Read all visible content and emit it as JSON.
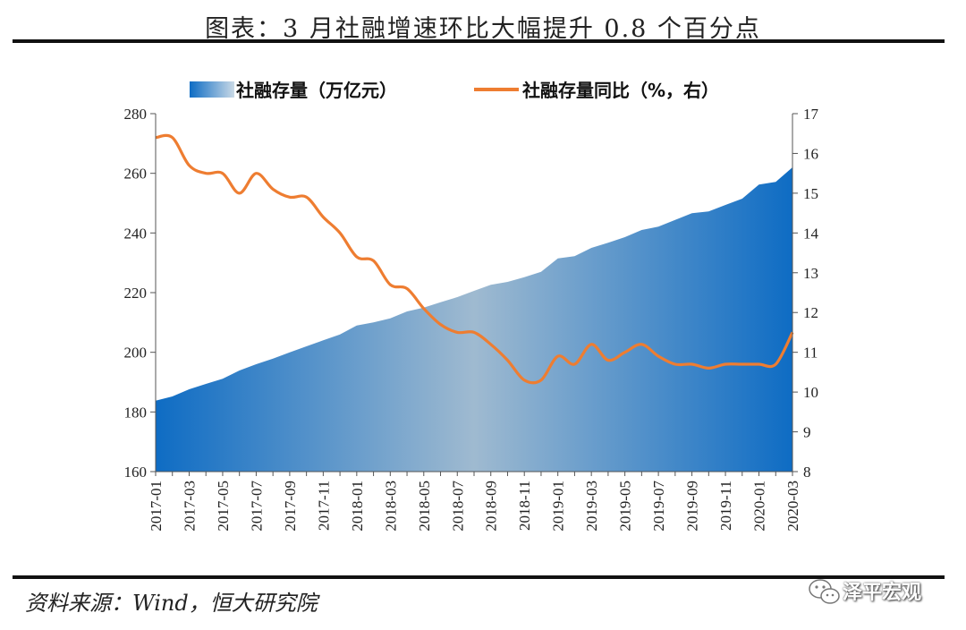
{
  "title": "图表：3 月社融增速环比大幅提升 0.8 个百分点",
  "source": "资料来源：Wind，恒大研究院",
  "brand": {
    "name": "泽平宏观",
    "icon": "wechat-icon"
  },
  "colors": {
    "area_dark": "#0e6cc4",
    "area_light": "#9fbad0",
    "line": "#ee7d31"
  },
  "chart_data": {
    "type": "area",
    "x": [
      "2017-01",
      "2017-02",
      "2017-03",
      "2017-04",
      "2017-05",
      "2017-06",
      "2017-07",
      "2017-08",
      "2017-09",
      "2017-10",
      "2017-11",
      "2017-12",
      "2018-01",
      "2018-02",
      "2018-03",
      "2018-04",
      "2018-05",
      "2018-06",
      "2018-07",
      "2018-08",
      "2018-09",
      "2018-10",
      "2018-11",
      "2018-12",
      "2019-01",
      "2019-02",
      "2019-03",
      "2019-04",
      "2019-05",
      "2019-06",
      "2019-07",
      "2019-08",
      "2019-09",
      "2019-10",
      "2019-11",
      "2019-12",
      "2020-01",
      "2020-02",
      "2020-03"
    ],
    "x_tick_labels": [
      "2017-01",
      "2017-03",
      "2017-05",
      "2017-07",
      "2017-09",
      "2017-11",
      "2018-01",
      "2018-03",
      "2018-05",
      "2018-07",
      "2018-09",
      "2018-11",
      "2019-01",
      "2019-03",
      "2019-05",
      "2019-07",
      "2019-09",
      "2019-11",
      "2020-01",
      "2020-03"
    ],
    "series": [
      {
        "name": "社融存量（万亿元）",
        "type": "area",
        "axis": "left",
        "values": [
          183.8,
          185.2,
          187.6,
          189.4,
          191.1,
          193.9,
          196.0,
          197.9,
          200.0,
          202.0,
          204.0,
          206.0,
          209.0,
          210.0,
          211.4,
          213.7,
          215.0,
          216.8,
          218.5,
          220.6,
          222.6,
          223.6,
          225.2,
          227.0,
          231.5,
          232.2,
          235.0,
          236.7,
          238.6,
          241.0,
          242.1,
          244.4,
          246.6,
          247.2,
          249.4,
          251.5,
          256.2,
          257.1,
          262.0
        ]
      },
      {
        "name": "社融存量同比（%，右）",
        "type": "line",
        "axis": "right",
        "values": [
          16.4,
          16.4,
          15.7,
          15.5,
          15.5,
          15.0,
          15.5,
          15.1,
          14.9,
          14.9,
          14.4,
          14.0,
          13.4,
          13.3,
          12.7,
          12.6,
          12.1,
          11.7,
          11.5,
          11.5,
          11.2,
          10.8,
          10.3,
          10.3,
          10.9,
          10.7,
          11.2,
          10.8,
          11.0,
          11.2,
          10.9,
          10.7,
          10.7,
          10.6,
          10.7,
          10.7,
          10.7,
          10.7,
          11.5
        ]
      }
    ],
    "y_left": {
      "min": 160,
      "max": 280,
      "ticks": [
        160,
        180,
        200,
        220,
        240,
        260,
        280
      ]
    },
    "y_right": {
      "min": 8,
      "max": 17,
      "ticks": [
        8,
        9,
        10,
        11,
        12,
        13,
        14,
        15,
        16,
        17
      ]
    },
    "legend_position": "top",
    "grid": false
  }
}
